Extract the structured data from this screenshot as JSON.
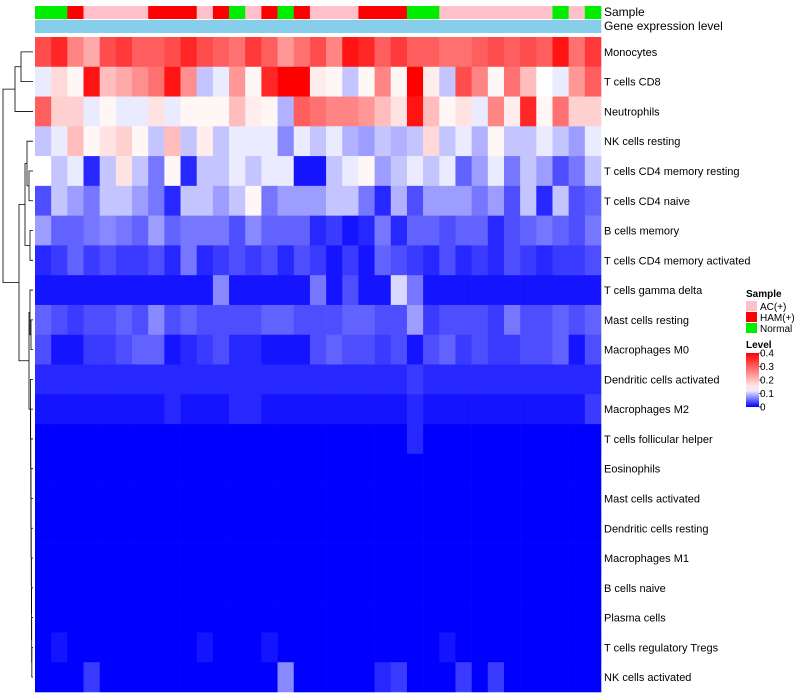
{
  "chart_data": {
    "type": "heatmap",
    "title": "",
    "row_labels": [
      "Monocytes",
      "T cells CD8",
      "Neutrophils",
      "NK cells resting",
      "T cells CD4 memory resting",
      "T cells CD4 naive",
      "B cells memory",
      "T cells CD4 memory activated",
      "T cells gamma delta",
      "Mast cells resting",
      "Macrophages M0",
      "Dendritic cells activated",
      "Macrophages M2",
      "T cells follicular helper",
      "Eosinophils",
      "Mast cells activated",
      "Dendritic cells resting",
      "Macrophages M1",
      "B cells naive",
      "Plasma cells",
      "T cells regulatory  Tregs",
      "NK cells activated"
    ],
    "column_annotations": {
      "Sample": [
        "Normal",
        "Normal",
        "HAM(+)",
        "AC(+)",
        "AC(+)",
        "AC(+)",
        "AC(+)",
        "HAM(+)",
        "HAM(+)",
        "HAM(+)",
        "AC(+)",
        "HAM(+)",
        "Normal",
        "AC(+)",
        "HAM(+)",
        "Normal",
        "HAM(+)",
        "AC(+)",
        "AC(+)",
        "AC(+)",
        "HAM(+)",
        "HAM(+)",
        "HAM(+)",
        "Normal",
        "Normal",
        "AC(+)",
        "AC(+)",
        "AC(+)",
        "AC(+)",
        "AC(+)",
        "AC(+)",
        "AC(+)",
        "Normal",
        "AC(+)",
        "Normal"
      ],
      "Gene expression level": [
        "low",
        "low",
        "low",
        "low",
        "low",
        "low",
        "low",
        "low",
        "low",
        "low",
        "low",
        "low",
        "low",
        "low",
        "low",
        "low",
        "low",
        "low",
        "low",
        "low",
        "low",
        "low",
        "low",
        "low",
        "low",
        "low",
        "low",
        "low",
        "low",
        "low",
        "low",
        "low",
        "low",
        "low",
        "low"
      ]
    },
    "values": [
      [
        0.32,
        0.36,
        0.26,
        0.22,
        0.32,
        0.34,
        0.3,
        0.3,
        0.32,
        0.36,
        0.32,
        0.3,
        0.28,
        0.34,
        0.3,
        0.24,
        0.28,
        0.32,
        0.26,
        0.38,
        0.36,
        0.3,
        0.34,
        0.3,
        0.3,
        0.28,
        0.28,
        0.3,
        0.32,
        0.3,
        0.32,
        0.3,
        0.38,
        0.28,
        0.34
      ],
      [
        0.12,
        0.17,
        0.14,
        0.38,
        0.2,
        0.22,
        0.25,
        0.28,
        0.38,
        0.25,
        0.1,
        0.12,
        0.24,
        0.14,
        0.36,
        0.4,
        0.4,
        0.15,
        0.14,
        0.1,
        0.14,
        0.26,
        0.14,
        0.4,
        0.15,
        0.1,
        0.32,
        0.26,
        0.14,
        0.28,
        0.2,
        0.13,
        0.12,
        0.24,
        0.3
      ],
      [
        0.3,
        0.18,
        0.18,
        0.12,
        0.14,
        0.12,
        0.12,
        0.16,
        0.12,
        0.14,
        0.14,
        0.14,
        0.2,
        0.15,
        0.14,
        0.09,
        0.3,
        0.28,
        0.26,
        0.26,
        0.24,
        0.2,
        0.16,
        0.38,
        0.2,
        0.14,
        0.16,
        0.12,
        0.26,
        0.15,
        0.36,
        0.14,
        0.28,
        0.18,
        0.18
      ],
      [
        0.1,
        0.12,
        0.2,
        0.14,
        0.16,
        0.18,
        0.14,
        0.1,
        0.2,
        0.1,
        0.15,
        0.1,
        0.12,
        0.12,
        0.12,
        0.07,
        0.12,
        0.1,
        0.12,
        0.09,
        0.08,
        0.1,
        0.09,
        0.1,
        0.17,
        0.1,
        0.12,
        0.09,
        0.14,
        0.1,
        0.1,
        0.12,
        0.1,
        0.08,
        0.12
      ],
      [
        0.13,
        0.1,
        0.12,
        0.02,
        0.1,
        0.16,
        0.1,
        0.06,
        0.14,
        0.02,
        0.1,
        0.1,
        0.12,
        0.1,
        0.12,
        0.12,
        0.01,
        0.01,
        0.1,
        0.12,
        0.14,
        0.08,
        0.1,
        0.12,
        0.1,
        0.12,
        0.05,
        0.08,
        0.12,
        0.06,
        0.1,
        0.08,
        0.04,
        0.06,
        0.1
      ],
      [
        0.04,
        0.1,
        0.08,
        0.06,
        0.1,
        0.1,
        0.08,
        0.06,
        0.02,
        0.1,
        0.1,
        0.08,
        0.1,
        0.14,
        0.06,
        0.08,
        0.08,
        0.08,
        0.1,
        0.1,
        0.06,
        0.02,
        0.09,
        0.04,
        0.08,
        0.08,
        0.08,
        0.06,
        0.08,
        0.04,
        0.1,
        0.02,
        0.1,
        0.04,
        0.05
      ],
      [
        0.08,
        0.05,
        0.05,
        0.06,
        0.07,
        0.06,
        0.05,
        0.08,
        0.05,
        0.06,
        0.06,
        0.06,
        0.04,
        0.07,
        0.05,
        0.05,
        0.05,
        0.02,
        0.03,
        0.01,
        0.02,
        0.06,
        0.02,
        0.05,
        0.05,
        0.04,
        0.05,
        0.05,
        0.02,
        0.04,
        0.05,
        0.06,
        0.05,
        0.04,
        0.06
      ],
      [
        0.02,
        0.03,
        0.05,
        0.03,
        0.04,
        0.03,
        0.03,
        0.04,
        0.02,
        0.06,
        0.02,
        0.03,
        0.04,
        0.03,
        0.04,
        0.02,
        0.04,
        0.03,
        0.01,
        0.03,
        0.01,
        0.05,
        0.04,
        0.03,
        0.02,
        0.04,
        0.02,
        0.03,
        0.02,
        0.04,
        0.03,
        0.02,
        0.03,
        0.03,
        0.04
      ],
      [
        0.01,
        0.01,
        0.01,
        0.01,
        0.01,
        0.01,
        0.01,
        0.01,
        0.01,
        0.01,
        0.01,
        0.07,
        0.01,
        0.01,
        0.01,
        0.01,
        0.01,
        0.06,
        0.01,
        0.04,
        0.01,
        0.01,
        0.11,
        0.06,
        0.01,
        0.01,
        0.01,
        0.01,
        0.01,
        0.01,
        0.01,
        0.01,
        0.01,
        0.01,
        0.01
      ],
      [
        0.05,
        0.04,
        0.03,
        0.04,
        0.04,
        0.05,
        0.04,
        0.07,
        0.04,
        0.05,
        0.04,
        0.04,
        0.04,
        0.04,
        0.05,
        0.05,
        0.04,
        0.04,
        0.04,
        0.05,
        0.05,
        0.04,
        0.04,
        0.08,
        0.03,
        0.04,
        0.04,
        0.04,
        0.03,
        0.06,
        0.04,
        0.04,
        0.05,
        0.04,
        0.05
      ],
      [
        0.04,
        0.01,
        0.01,
        0.03,
        0.03,
        0.04,
        0.05,
        0.05,
        0.01,
        0.02,
        0.03,
        0.04,
        0.02,
        0.02,
        0.01,
        0.01,
        0.01,
        0.04,
        0.05,
        0.04,
        0.04,
        0.03,
        0.04,
        0.01,
        0.04,
        0.05,
        0.03,
        0.04,
        0.03,
        0.03,
        0.04,
        0.04,
        0.05,
        0.01,
        0.04
      ],
      [
        0.02,
        0.02,
        0.02,
        0.02,
        0.02,
        0.02,
        0.02,
        0.02,
        0.02,
        0.02,
        0.02,
        0.02,
        0.02,
        0.02,
        0.02,
        0.02,
        0.02,
        0.02,
        0.02,
        0.02,
        0.02,
        0.02,
        0.02,
        0.03,
        0.02,
        0.02,
        0.02,
        0.02,
        0.02,
        0.02,
        0.02,
        0.02,
        0.02,
        0.02,
        0.02
      ],
      [
        0.01,
        0.01,
        0.01,
        0.01,
        0.01,
        0.01,
        0.01,
        0.01,
        0.02,
        0.01,
        0.01,
        0.01,
        0.02,
        0.02,
        0.01,
        0.01,
        0.01,
        0.01,
        0.01,
        0.01,
        0.01,
        0.01,
        0.01,
        0.02,
        0.01,
        0.01,
        0.01,
        0.01,
        0.01,
        0.01,
        0.01,
        0.01,
        0.01,
        0.01,
        0.03
      ],
      [
        0,
        0,
        0,
        0,
        0,
        0,
        0,
        0,
        0,
        0,
        0,
        0,
        0,
        0,
        0,
        0,
        0,
        0,
        0,
        0,
        0,
        0,
        0,
        0.02,
        0,
        0,
        0,
        0,
        0,
        0,
        0,
        0,
        0,
        0,
        0
      ],
      [
        0,
        0,
        0,
        0,
        0,
        0,
        0,
        0,
        0,
        0,
        0,
        0,
        0,
        0,
        0,
        0,
        0,
        0,
        0,
        0,
        0,
        0,
        0,
        0,
        0,
        0,
        0,
        0,
        0,
        0,
        0,
        0,
        0,
        0,
        0
      ],
      [
        0,
        0,
        0,
        0,
        0,
        0,
        0,
        0,
        0,
        0,
        0,
        0,
        0,
        0,
        0,
        0,
        0,
        0,
        0,
        0,
        0,
        0,
        0,
        0,
        0,
        0,
        0,
        0,
        0,
        0,
        0,
        0,
        0,
        0,
        0
      ],
      [
        0,
        0,
        0,
        0,
        0,
        0,
        0,
        0,
        0,
        0,
        0,
        0,
        0,
        0,
        0,
        0,
        0,
        0,
        0,
        0,
        0,
        0,
        0,
        0,
        0,
        0,
        0,
        0,
        0,
        0,
        0,
        0,
        0,
        0,
        0
      ],
      [
        0,
        0,
        0,
        0,
        0,
        0,
        0,
        0,
        0,
        0,
        0,
        0,
        0,
        0,
        0,
        0,
        0,
        0,
        0,
        0,
        0,
        0,
        0,
        0,
        0,
        0,
        0,
        0,
        0,
        0,
        0,
        0,
        0,
        0,
        0
      ],
      [
        0,
        0,
        0,
        0,
        0,
        0,
        0,
        0,
        0,
        0,
        0,
        0,
        0,
        0,
        0,
        0,
        0,
        0,
        0,
        0,
        0,
        0,
        0,
        0,
        0,
        0,
        0,
        0,
        0,
        0,
        0,
        0,
        0,
        0,
        0
      ],
      [
        0,
        0,
        0,
        0,
        0,
        0,
        0,
        0,
        0,
        0,
        0,
        0,
        0,
        0,
        0,
        0,
        0,
        0,
        0,
        0,
        0,
        0,
        0,
        0,
        0,
        0,
        0,
        0,
        0,
        0,
        0,
        0,
        0,
        0,
        0
      ],
      [
        0,
        0.01,
        0,
        0,
        0,
        0,
        0,
        0,
        0,
        0,
        0.01,
        0,
        0,
        0,
        0.01,
        0,
        0,
        0,
        0,
        0,
        0,
        0,
        0,
        0,
        0,
        0.01,
        0,
        0,
        0,
        0,
        0,
        0,
        0,
        0,
        0
      ],
      [
        0,
        0,
        0,
        0.03,
        0,
        0,
        0,
        0,
        0,
        0,
        0,
        0,
        0,
        0,
        0,
        0.07,
        0,
        0,
        0,
        0,
        0,
        0.02,
        0.03,
        0,
        0,
        0,
        0.03,
        0,
        0.03,
        0,
        0,
        0,
        0,
        0,
        0
      ]
    ],
    "color_scale": {
      "min": 0,
      "max": 0.4,
      "low": "#0000ff",
      "mid": "#ffffff",
      "high": "#ff0000",
      "mid_value": 0.13
    },
    "annotation_colors": {
      "Sample": {
        "AC(+)": "#ffc0cb",
        "HAM(+)": "#ff0000",
        "Normal": "#00ee00"
      },
      "Gene expression level": {
        "low": "#87ceeb"
      }
    },
    "annotation_labels": [
      "Sample",
      "Gene expression level"
    ],
    "legend": {
      "sample_title": "Sample",
      "sample_entries": [
        "AC(+)",
        "HAM(+)",
        "Normal"
      ],
      "level_title": "Level",
      "level_ticks": [
        "0.4",
        "0.3",
        "0.2",
        "0.1",
        "0"
      ],
      "level_tick_values": [
        0.4,
        0.3,
        0.2,
        0.1,
        0
      ]
    }
  }
}
